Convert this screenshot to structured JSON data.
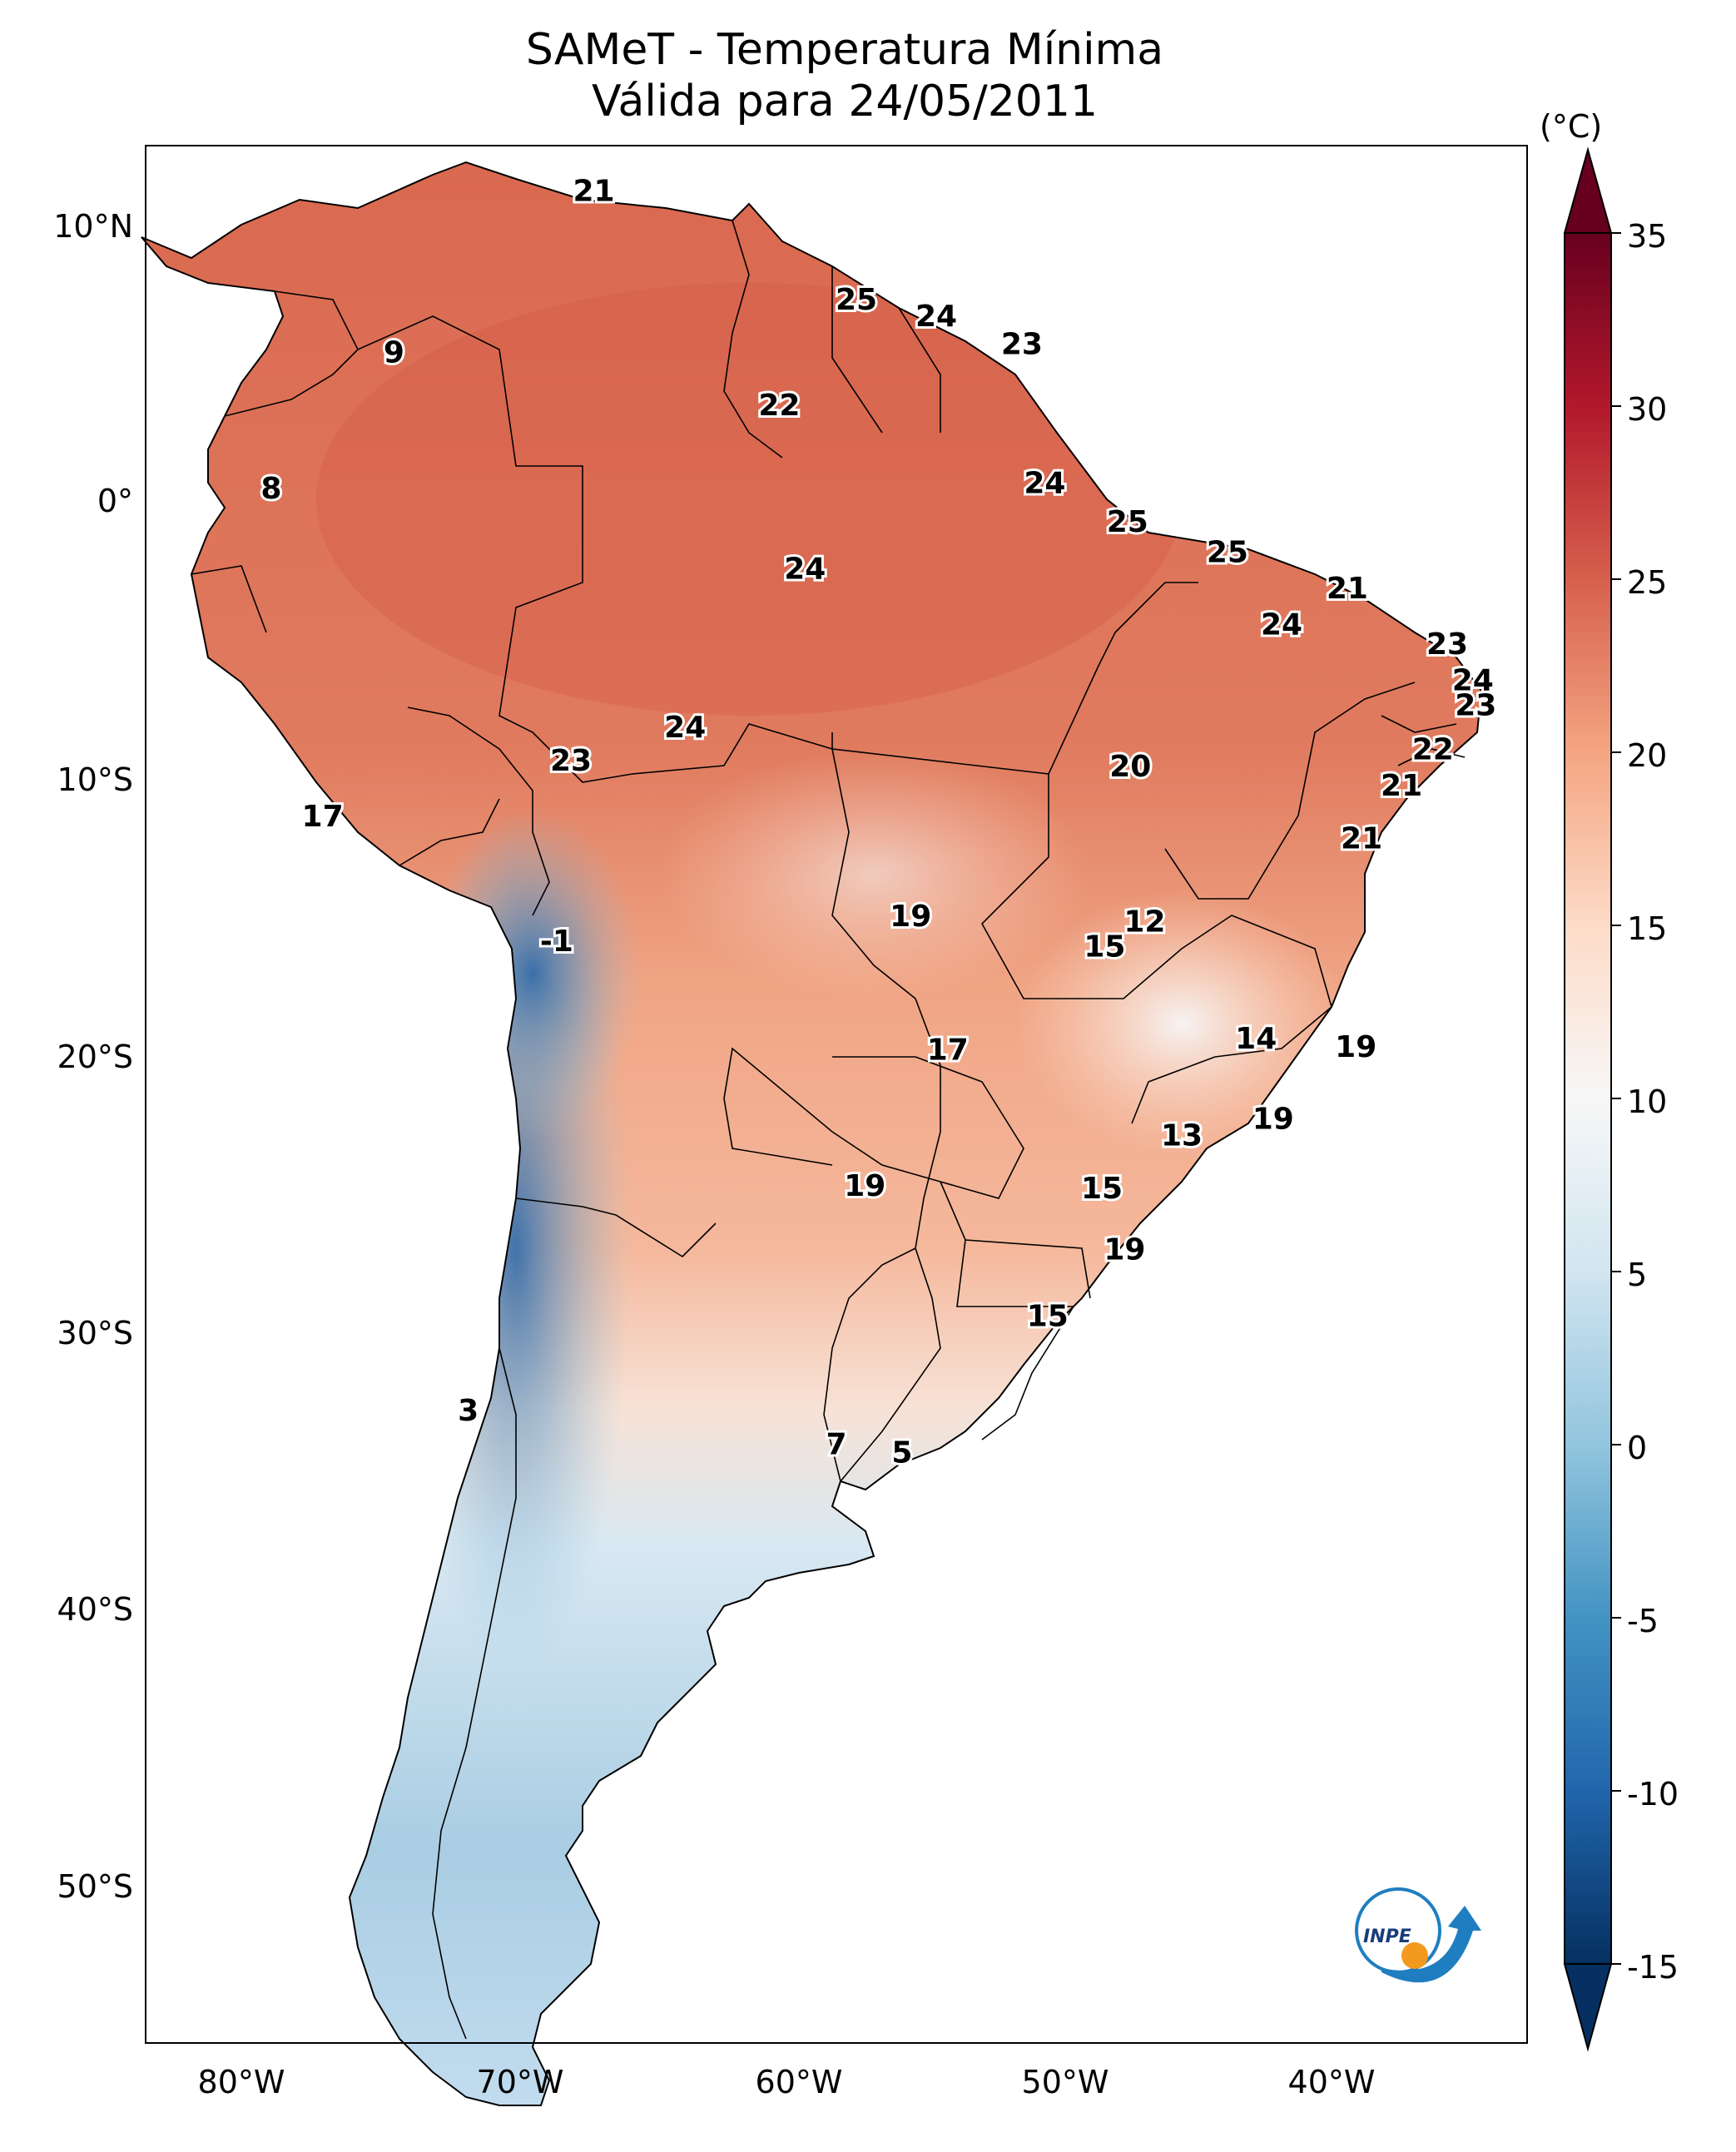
{
  "title": {
    "line1": "SAMeT - Temperatura Mínima",
    "line2": "Válida para 24/05/2011"
  },
  "axes": {
    "lat_labels": [
      "10°N",
      "0°",
      "10°S",
      "20°S",
      "30°S",
      "40°S",
      "50°S"
    ],
    "lon_labels": [
      "80°W",
      "70°W",
      "60°W",
      "50°W",
      "40°W"
    ]
  },
  "colorbar": {
    "unit": "(°C)",
    "ticks": [
      "35",
      "30",
      "25",
      "20",
      "15",
      "10",
      "5",
      "0",
      "-5",
      "-10",
      "-15"
    ],
    "min": -15,
    "max": 35,
    "colors": [
      "#053061",
      "#2166ac",
      "#4393c3",
      "#92c5de",
      "#d1e5f0",
      "#f7f7f7",
      "#fddbc7",
      "#f4a582",
      "#d6604d",
      "#b2182b",
      "#67001f"
    ]
  },
  "stations": [
    {
      "value": "21",
      "lon": -67,
      "lat": 10.5
    },
    {
      "value": "9",
      "lon": -74,
      "lat": 4.7
    },
    {
      "value": "25",
      "lon": -57.8,
      "lat": 6.6
    },
    {
      "value": "24",
      "lon": -55,
      "lat": 6.0
    },
    {
      "value": "23",
      "lon": -52,
      "lat": 5.0
    },
    {
      "value": "22",
      "lon": -60.5,
      "lat": 2.8
    },
    {
      "value": "8",
      "lon": -78.3,
      "lat": -0.2
    },
    {
      "value": "24",
      "lon": -51.2,
      "lat": 0.0
    },
    {
      "value": "25",
      "lon": -48.3,
      "lat": -1.4
    },
    {
      "value": "24",
      "lon": -59.6,
      "lat": -3.1
    },
    {
      "value": "25",
      "lon": -44.8,
      "lat": -2.5
    },
    {
      "value": "21",
      "lon": -40.6,
      "lat": -3.8
    },
    {
      "value": "24",
      "lon": -42.9,
      "lat": -5.1
    },
    {
      "value": "23",
      "lon": -37.1,
      "lat": -5.8
    },
    {
      "value": "24",
      "lon": -36.2,
      "lat": -7.1
    },
    {
      "value": "23",
      "lon": -36.1,
      "lat": -8.0
    },
    {
      "value": "24",
      "lon": -63.8,
      "lat": -8.8
    },
    {
      "value": "23",
      "lon": -67.8,
      "lat": -10.0
    },
    {
      "value": "20",
      "lon": -48.2,
      "lat": -10.2
    },
    {
      "value": "22",
      "lon": -37.6,
      "lat": -9.6
    },
    {
      "value": "21",
      "lon": -38.7,
      "lat": -10.9
    },
    {
      "value": "17",
      "lon": -76.5,
      "lat": -12.0
    },
    {
      "value": "21",
      "lon": -40.1,
      "lat": -12.8
    },
    {
      "value": "12",
      "lon": -47.7,
      "lat": -15.8
    },
    {
      "value": "19",
      "lon": -55.9,
      "lat": -15.6
    },
    {
      "value": "15",
      "lon": -49.1,
      "lat": -16.7
    },
    {
      "value": "-1",
      "lon": -68.3,
      "lat": -16.5
    },
    {
      "value": "14",
      "lon": -43.8,
      "lat": -20.0
    },
    {
      "value": "19",
      "lon": -40.3,
      "lat": -20.3
    },
    {
      "value": "17",
      "lon": -54.6,
      "lat": -20.4
    },
    {
      "value": "19",
      "lon": -43.2,
      "lat": -22.9
    },
    {
      "value": "13",
      "lon": -46.4,
      "lat": -23.5
    },
    {
      "value": "19",
      "lon": -57.5,
      "lat": -25.3
    },
    {
      "value": "15",
      "lon": -49.2,
      "lat": -25.4
    },
    {
      "value": "19",
      "lon": -48.4,
      "lat": -27.6
    },
    {
      "value": "15",
      "lon": -51.1,
      "lat": -30.0
    },
    {
      "value": "3",
      "lon": -71.4,
      "lat": -33.4
    },
    {
      "value": "7",
      "lon": -58.5,
      "lat": -34.6
    },
    {
      "value": "5",
      "lon": -56.2,
      "lat": -34.9
    }
  ],
  "logo_text": "INPE"
}
